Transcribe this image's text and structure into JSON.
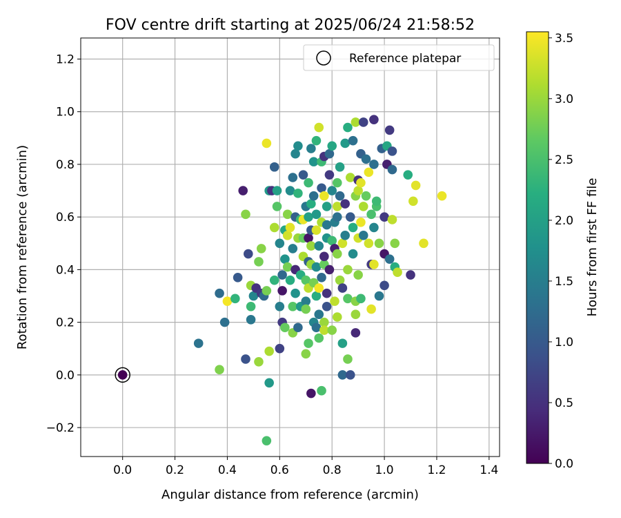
{
  "chart_data": {
    "type": "scatter",
    "title": "FOV centre drift starting at 2025/06/24 21:58:52",
    "xlabel": "Angular distance from reference (arcmin)",
    "ylabel": "Rotation from reference (arcmin)",
    "xlim": [
      -0.16,
      1.44
    ],
    "ylim": [
      -0.31,
      1.28
    ],
    "xticks": [
      0.0,
      0.2,
      0.4,
      0.6,
      0.8,
      1.0,
      1.2,
      1.4
    ],
    "xtick_labels": [
      "0.0",
      "0.2",
      "0.4",
      "0.6",
      "0.8",
      "1.0",
      "1.2",
      "1.4"
    ],
    "yticks": [
      -0.2,
      0.0,
      0.2,
      0.4,
      0.6,
      0.8,
      1.0,
      1.2
    ],
    "ytick_labels": [
      "−0.2",
      "0.0",
      "0.2",
      "0.4",
      "0.6",
      "0.8",
      "1.0",
      "1.2"
    ],
    "grid": true,
    "legend": {
      "position": "top-right",
      "entries": [
        "Reference platepar"
      ]
    },
    "reference_point": {
      "name": "Reference platepar",
      "x": 0.0,
      "y": 0.0,
      "hours": 0.0
    },
    "colorbar": {
      "label": "Hours from first FF file",
      "range": [
        0.0,
        3.55
      ],
      "ticks": [
        0.0,
        0.5,
        1.0,
        1.5,
        2.0,
        2.5,
        3.0,
        3.5
      ],
      "tick_labels": [
        "0.0",
        "0.5",
        "1.0",
        "1.5",
        "2.0",
        "2.5",
        "3.0",
        "3.5"
      ],
      "colormap": "viridis"
    },
    "points": [
      [
        0.29,
        0.12,
        1.35
      ],
      [
        0.37,
        0.02,
        2.85
      ],
      [
        0.37,
        0.31,
        1.25
      ],
      [
        0.39,
        0.2,
        1.3
      ],
      [
        0.4,
        0.28,
        3.5
      ],
      [
        0.43,
        0.29,
        2.3
      ],
      [
        0.44,
        0.37,
        1.0
      ],
      [
        0.46,
        0.7,
        0.3
      ],
      [
        0.47,
        0.61,
        2.9
      ],
      [
        0.47,
        0.06,
        0.9
      ],
      [
        0.48,
        0.46,
        0.8
      ],
      [
        0.49,
        0.34,
        3.0
      ],
      [
        0.49,
        0.26,
        2.4
      ],
      [
        0.49,
        0.21,
        1.4
      ],
      [
        0.5,
        0.3,
        1.6
      ],
      [
        0.51,
        0.33,
        0.5
      ],
      [
        0.52,
        0.05,
        3.0
      ],
      [
        0.52,
        0.43,
        2.8
      ],
      [
        0.53,
        0.48,
        2.9
      ],
      [
        0.53,
        0.31,
        0.6
      ],
      [
        0.54,
        0.3,
        1.2
      ],
      [
        0.55,
        0.88,
        3.45
      ],
      [
        0.55,
        0.32,
        2.8
      ],
      [
        0.55,
        -0.25,
        2.5
      ],
      [
        0.56,
        -0.03,
        1.9
      ],
      [
        0.56,
        0.09,
        3.1
      ],
      [
        0.56,
        0.7,
        1.9
      ],
      [
        0.57,
        0.7,
        0.5
      ],
      [
        0.58,
        0.79,
        1.1
      ],
      [
        0.58,
        0.56,
        3.1
      ],
      [
        0.58,
        0.36,
        2.3
      ],
      [
        0.59,
        0.64,
        2.6
      ],
      [
        0.59,
        0.7,
        2.0
      ],
      [
        0.6,
        0.26,
        1.5
      ],
      [
        0.6,
        0.1,
        0.7
      ],
      [
        0.6,
        0.5,
        1.6
      ],
      [
        0.61,
        0.38,
        1.2
      ],
      [
        0.61,
        0.2,
        0.6
      ],
      [
        0.61,
        0.32,
        0.2
      ],
      [
        0.62,
        0.55,
        2.1
      ],
      [
        0.62,
        0.18,
        2.7
      ],
      [
        0.62,
        0.44,
        1.8
      ],
      [
        0.63,
        0.61,
        2.9
      ],
      [
        0.63,
        0.53,
        3.3
      ],
      [
        0.63,
        0.41,
        2.8
      ],
      [
        0.64,
        0.56,
        3.4
      ],
      [
        0.64,
        0.7,
        1.7
      ],
      [
        0.64,
        0.36,
        2.2
      ],
      [
        0.65,
        0.48,
        1.5
      ],
      [
        0.65,
        0.26,
        2.6
      ],
      [
        0.65,
        0.16,
        2.9
      ],
      [
        0.65,
        0.75,
        1.3
      ],
      [
        0.66,
        0.6,
        1.1
      ],
      [
        0.66,
        0.4,
        0.4
      ],
      [
        0.66,
        0.31,
        1.8
      ],
      [
        0.66,
        0.84,
        1.6
      ],
      [
        0.67,
        0.87,
        1.7
      ],
      [
        0.67,
        0.52,
        3.0
      ],
      [
        0.67,
        0.69,
        2.3
      ],
      [
        0.67,
        0.18,
        1.2
      ],
      [
        0.68,
        0.59,
        2.4
      ],
      [
        0.68,
        0.38,
        2.2
      ],
      [
        0.68,
        0.26,
        1.9
      ],
      [
        0.69,
        0.76,
        1.0
      ],
      [
        0.69,
        0.59,
        3.45
      ],
      [
        0.69,
        0.52,
        2.7
      ],
      [
        0.69,
        0.45,
        3.1
      ],
      [
        0.7,
        0.08,
        2.9
      ],
      [
        0.7,
        0.64,
        1.4
      ],
      [
        0.7,
        0.28,
        1.5
      ],
      [
        0.7,
        0.25,
        2.8
      ],
      [
        0.7,
        0.36,
        2.6
      ],
      [
        0.71,
        0.12,
        2.6
      ],
      [
        0.71,
        0.73,
        2.4
      ],
      [
        0.71,
        0.52,
        0.2
      ],
      [
        0.71,
        0.33,
        3.2
      ],
      [
        0.71,
        0.43,
        1.1
      ],
      [
        0.71,
        0.6,
        2.0
      ],
      [
        0.72,
        -0.07,
        0.2
      ],
      [
        0.72,
        0.42,
        3.0
      ],
      [
        0.72,
        0.49,
        3.0
      ],
      [
        0.72,
        0.55,
        1.0
      ],
      [
        0.72,
        0.65,
        2.2
      ],
      [
        0.72,
        0.86,
        1.5
      ],
      [
        0.73,
        0.81,
        1.8
      ],
      [
        0.73,
        0.2,
        1.6
      ],
      [
        0.73,
        0.35,
        2.8
      ],
      [
        0.73,
        0.68,
        1.3
      ],
      [
        0.74,
        0.55,
        3.35
      ],
      [
        0.74,
        0.61,
        1.9
      ],
      [
        0.74,
        0.18,
        1.3
      ],
      [
        0.74,
        0.3,
        2.2
      ],
      [
        0.74,
        0.41,
        1.7
      ],
      [
        0.74,
        0.89,
        2.3
      ],
      [
        0.75,
        0.94,
        3.3
      ],
      [
        0.75,
        0.33,
        3.5
      ],
      [
        0.75,
        0.14,
        2.6
      ],
      [
        0.75,
        0.23,
        1.4
      ],
      [
        0.75,
        0.49,
        1.6
      ],
      [
        0.76,
        -0.06,
        2.5
      ],
      [
        0.76,
        0.81,
        2.4
      ],
      [
        0.76,
        0.58,
        3.1
      ],
      [
        0.76,
        0.37,
        1.2
      ],
      [
        0.76,
        0.71,
        1.0
      ],
      [
        0.77,
        0.2,
        3.0
      ],
      [
        0.77,
        0.17,
        3.2
      ],
      [
        0.77,
        0.42,
        2.7
      ],
      [
        0.77,
        0.68,
        3.45
      ],
      [
        0.77,
        0.83,
        0.5
      ],
      [
        0.77,
        0.45,
        0.4
      ],
      [
        0.78,
        0.64,
        2.0
      ],
      [
        0.78,
        0.26,
        0.9
      ],
      [
        0.78,
        0.31,
        0.5
      ],
      [
        0.78,
        0.52,
        1.8
      ],
      [
        0.78,
        0.57,
        1.4
      ],
      [
        0.79,
        0.84,
        1.2
      ],
      [
        0.79,
        0.76,
        0.6
      ],
      [
        0.79,
        0.4,
        0.3
      ],
      [
        0.8,
        0.17,
        2.9
      ],
      [
        0.8,
        0.51,
        2.4
      ],
      [
        0.8,
        0.7,
        1.6
      ],
      [
        0.8,
        0.87,
        2.1
      ],
      [
        0.81,
        0.58,
        1.5
      ],
      [
        0.81,
        0.28,
        3.2
      ],
      [
        0.81,
        0.48,
        0.3
      ],
      [
        0.82,
        0.6,
        1.3
      ],
      [
        0.82,
        0.46,
        2.9
      ],
      [
        0.82,
        0.22,
        3.1
      ],
      [
        0.82,
        0.64,
        3.2
      ],
      [
        0.82,
        0.73,
        2.6
      ],
      [
        0.83,
        0.79,
        2.0
      ],
      [
        0.83,
        0.36,
        3.0
      ],
      [
        0.83,
        0.68,
        1.2
      ],
      [
        0.84,
        0.12,
        2.0
      ],
      [
        0.84,
        0.5,
        3.3
      ],
      [
        0.84,
        0.33,
        0.7
      ],
      [
        0.84,
        0.0,
        1.2
      ],
      [
        0.85,
        0.88,
        1.9
      ],
      [
        0.85,
        0.53,
        1.5
      ],
      [
        0.85,
        0.65,
        0.5
      ],
      [
        0.86,
        0.06,
        2.8
      ],
      [
        0.86,
        0.29,
        2.6
      ],
      [
        0.86,
        0.4,
        3.0
      ],
      [
        0.86,
        0.94,
        2.2
      ],
      [
        0.87,
        0.0,
        0.9
      ],
      [
        0.87,
        0.6,
        1.0
      ],
      [
        0.87,
        0.75,
        3.1
      ],
      [
        0.88,
        0.89,
        1.3
      ],
      [
        0.88,
        0.56,
        2.2
      ],
      [
        0.88,
        0.46,
        1.7
      ],
      [
        0.89,
        0.16,
        0.4
      ],
      [
        0.89,
        0.28,
        2.9
      ],
      [
        0.89,
        0.68,
        2.9
      ],
      [
        0.89,
        0.23,
        3.0
      ],
      [
        0.89,
        0.96,
        3.1
      ],
      [
        0.9,
        0.7,
        3.2
      ],
      [
        0.9,
        0.38,
        2.9
      ],
      [
        0.9,
        0.74,
        0.5
      ],
      [
        0.9,
        0.52,
        3.3
      ],
      [
        0.91,
        0.29,
        2.4
      ],
      [
        0.91,
        0.84,
        1.1
      ],
      [
        0.91,
        0.58,
        3.45
      ],
      [
        0.91,
        0.73,
        3.4
      ],
      [
        0.92,
        0.96,
        0.7
      ],
      [
        0.92,
        0.53,
        1.4
      ],
      [
        0.92,
        0.64,
        3.1
      ],
      [
        0.93,
        0.82,
        1.3
      ],
      [
        0.93,
        0.68,
        2.7
      ],
      [
        0.94,
        0.77,
        3.45
      ],
      [
        0.94,
        0.5,
        3.3
      ],
      [
        0.95,
        0.25,
        3.4
      ],
      [
        0.95,
        0.42,
        0.6
      ],
      [
        0.95,
        0.61,
        2.5
      ],
      [
        0.96,
        0.97,
        0.5
      ],
      [
        0.96,
        0.56,
        1.6
      ],
      [
        0.96,
        0.8,
        1.3
      ],
      [
        0.96,
        0.42,
        3.4
      ],
      [
        0.97,
        0.64,
        2.5
      ],
      [
        0.97,
        0.66,
        2.4
      ],
      [
        0.98,
        0.3,
        1.4
      ],
      [
        0.98,
        0.5,
        2.9
      ],
      [
        0.99,
        0.86,
        1.1
      ],
      [
        1.0,
        0.6,
        0.6
      ],
      [
        1.0,
        0.34,
        0.8
      ],
      [
        1.0,
        0.46,
        0.2
      ],
      [
        1.01,
        0.8,
        0.3
      ],
      [
        1.01,
        0.87,
        2.1
      ],
      [
        1.02,
        0.93,
        0.6
      ],
      [
        1.02,
        0.44,
        1.3
      ],
      [
        1.03,
        0.85,
        0.9
      ],
      [
        1.03,
        0.78,
        1.2
      ],
      [
        1.03,
        0.59,
        3.2
      ],
      [
        1.04,
        0.5,
        2.9
      ],
      [
        1.04,
        0.41,
        2.2
      ],
      [
        1.05,
        0.39,
        3.2
      ],
      [
        1.09,
        0.76,
        2.2
      ],
      [
        1.1,
        0.38,
        0.5
      ],
      [
        1.11,
        0.66,
        3.3
      ],
      [
        1.12,
        0.72,
        3.4
      ],
      [
        1.15,
        0.5,
        3.4
      ],
      [
        1.22,
        0.68,
        3.45
      ]
    ]
  }
}
